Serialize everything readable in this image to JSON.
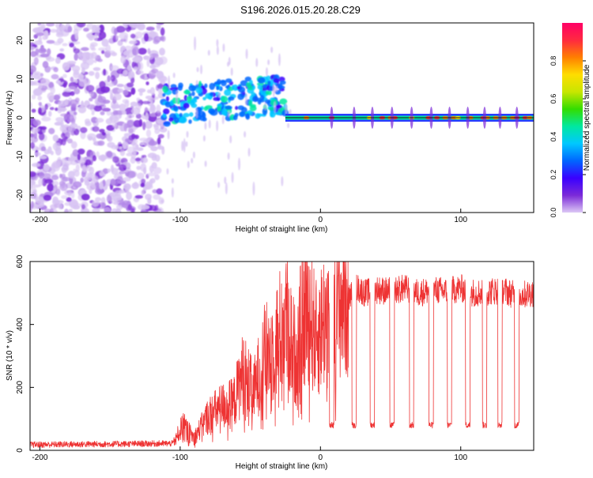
{
  "page_title": "S196.2026.015.20.28.C29",
  "chart_data": [
    {
      "type": "heatmap",
      "title": "S196.2026.015.20.28.C29",
      "xlabel": "Height of straight line (km)",
      "ylabel": "Frequency (Hz)",
      "xlim": [
        -207,
        152
      ],
      "ylim": [
        -24.5,
        24.5
      ],
      "xticks": [
        -200,
        -100,
        0,
        100
      ],
      "yticks": [
        -20,
        -10,
        0,
        10,
        20
      ],
      "colorbar": {
        "label": "Normalized spectral amplitude",
        "range": [
          0,
          1
        ],
        "ticks": [
          "0.0",
          "0.2",
          "0.4",
          "0.6",
          "0.8"
        ],
        "tick_values": [
          0,
          0.2,
          0.4,
          0.6,
          0.8
        ],
        "colors": [
          "#dcc8f5",
          "#7b2ad8",
          "#3a00ff",
          "#0066ff",
          "#00c8ff",
          "#00e8a0",
          "#33dd00",
          "#c8e600",
          "#ffdd00",
          "#ff7f00",
          "#ff2a40",
          "#ff0066"
        ]
      },
      "regions": [
        {
          "name": "noise",
          "x_range": [
            -207,
            -112
          ],
          "freq_range": [
            -24.5,
            24.5
          ],
          "amplitude": [
            0.05,
            0.3
          ]
        },
        {
          "name": "scattered-echo",
          "x_range": [
            -112,
            -25
          ],
          "freq_range": [
            0,
            10
          ],
          "amplitude": [
            0.2,
            0.45
          ]
        },
        {
          "name": "coherent-line",
          "x_range": [
            -25,
            152
          ],
          "freq_center": 0,
          "amplitude": [
            0.4,
            0.95
          ]
        }
      ]
    },
    {
      "type": "line",
      "xlabel": "Height of straight line (km)",
      "ylabel": "SNR (10 * v/v)",
      "xlim": [
        -207,
        152
      ],
      "ylim": [
        0,
        600
      ],
      "xticks": [
        -200,
        -100,
        0,
        100
      ],
      "yticks": [
        0,
        200,
        400,
        600
      ],
      "series": [
        {
          "name": "SNR",
          "color": "#ee3333",
          "points": [
            [
              -207,
              18
            ],
            [
              -150,
              20
            ],
            [
              -105,
              22
            ],
            [
              -98,
              80
            ],
            [
              -90,
              40
            ],
            [
              -80,
              110
            ],
            [
              -70,
              140
            ],
            [
              -62,
              150
            ],
            [
              -55,
              250
            ],
            [
              -48,
              180
            ],
            [
              -40,
              300
            ],
            [
              -33,
              330
            ],
            [
              -25,
              420
            ],
            [
              -18,
              300
            ],
            [
              -10,
              480
            ],
            [
              -3,
              350
            ],
            [
              3,
              420
            ],
            [
              10,
              470
            ],
            [
              20,
              480
            ],
            [
              25,
              520
            ],
            [
              32,
              500
            ],
            [
              40,
              510
            ],
            [
              50,
              505
            ],
            [
              60,
              515
            ],
            [
              70,
              500
            ],
            [
              80,
              510
            ],
            [
              90,
              505
            ],
            [
              100,
              515
            ],
            [
              110,
              500
            ],
            [
              120,
              505
            ],
            [
              130,
              510
            ],
            [
              140,
              490
            ],
            [
              150,
              500
            ]
          ],
          "dips": [
            8,
            24,
            37,
            51,
            65,
            79,
            92,
            105,
            117,
            128,
            140
          ]
        }
      ]
    }
  ]
}
